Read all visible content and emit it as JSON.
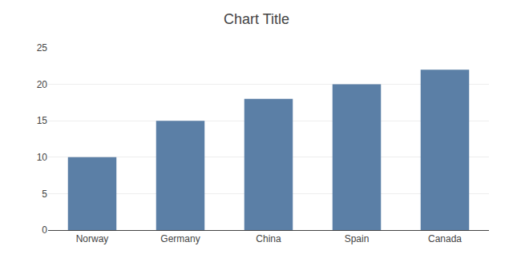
{
  "chart_data": {
    "type": "bar",
    "title": "Chart Title",
    "categories": [
      "Norway",
      "Germany",
      "China",
      "Spain",
      "Canada"
    ],
    "values": [
      10,
      15,
      18,
      20,
      22
    ],
    "color": "#5B7FA6",
    "ylim": [
      0,
      25
    ],
    "yticks": [
      0,
      5,
      10,
      15,
      20,
      25
    ],
    "grid": true
  }
}
